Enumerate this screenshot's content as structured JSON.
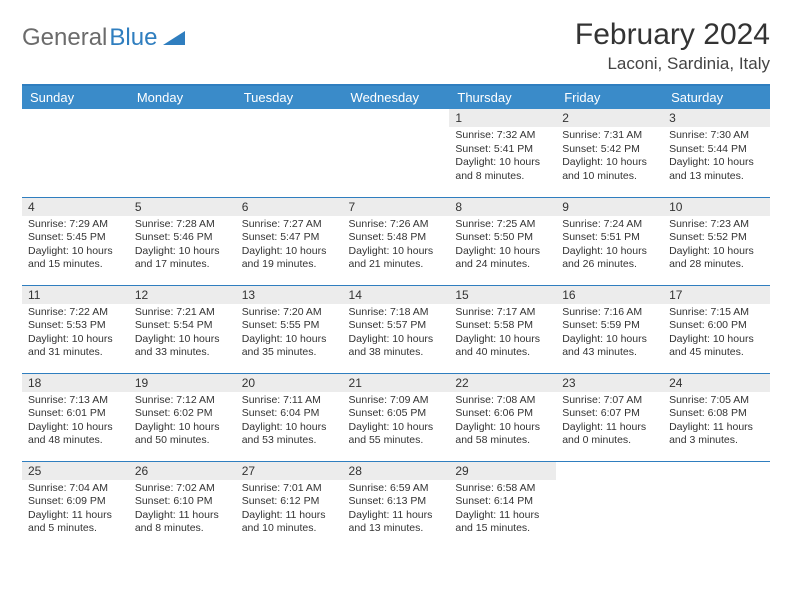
{
  "brand": {
    "part1": "General",
    "part2": "Blue"
  },
  "title": "February 2024",
  "location": "Laconi, Sardinia, Italy",
  "colors": {
    "header_bg": "#3a8bc9",
    "header_text": "#ffffff",
    "border": "#2f7ebf",
    "daynum_bg": "#ececec",
    "text": "#333333",
    "logo_gray": "#6b6b6b",
    "logo_blue": "#2f7ebf"
  },
  "weekdays": [
    "Sunday",
    "Monday",
    "Tuesday",
    "Wednesday",
    "Thursday",
    "Friday",
    "Saturday"
  ],
  "weeks": [
    [
      null,
      null,
      null,
      null,
      {
        "n": "1",
        "sr": "Sunrise: 7:32 AM",
        "ss": "Sunset: 5:41 PM",
        "d1": "Daylight: 10 hours",
        "d2": "and 8 minutes."
      },
      {
        "n": "2",
        "sr": "Sunrise: 7:31 AM",
        "ss": "Sunset: 5:42 PM",
        "d1": "Daylight: 10 hours",
        "d2": "and 10 minutes."
      },
      {
        "n": "3",
        "sr": "Sunrise: 7:30 AM",
        "ss": "Sunset: 5:44 PM",
        "d1": "Daylight: 10 hours",
        "d2": "and 13 minutes."
      }
    ],
    [
      {
        "n": "4",
        "sr": "Sunrise: 7:29 AM",
        "ss": "Sunset: 5:45 PM",
        "d1": "Daylight: 10 hours",
        "d2": "and 15 minutes."
      },
      {
        "n": "5",
        "sr": "Sunrise: 7:28 AM",
        "ss": "Sunset: 5:46 PM",
        "d1": "Daylight: 10 hours",
        "d2": "and 17 minutes."
      },
      {
        "n": "6",
        "sr": "Sunrise: 7:27 AM",
        "ss": "Sunset: 5:47 PM",
        "d1": "Daylight: 10 hours",
        "d2": "and 19 minutes."
      },
      {
        "n": "7",
        "sr": "Sunrise: 7:26 AM",
        "ss": "Sunset: 5:48 PM",
        "d1": "Daylight: 10 hours",
        "d2": "and 21 minutes."
      },
      {
        "n": "8",
        "sr": "Sunrise: 7:25 AM",
        "ss": "Sunset: 5:50 PM",
        "d1": "Daylight: 10 hours",
        "d2": "and 24 minutes."
      },
      {
        "n": "9",
        "sr": "Sunrise: 7:24 AM",
        "ss": "Sunset: 5:51 PM",
        "d1": "Daylight: 10 hours",
        "d2": "and 26 minutes."
      },
      {
        "n": "10",
        "sr": "Sunrise: 7:23 AM",
        "ss": "Sunset: 5:52 PM",
        "d1": "Daylight: 10 hours",
        "d2": "and 28 minutes."
      }
    ],
    [
      {
        "n": "11",
        "sr": "Sunrise: 7:22 AM",
        "ss": "Sunset: 5:53 PM",
        "d1": "Daylight: 10 hours",
        "d2": "and 31 minutes."
      },
      {
        "n": "12",
        "sr": "Sunrise: 7:21 AM",
        "ss": "Sunset: 5:54 PM",
        "d1": "Daylight: 10 hours",
        "d2": "and 33 minutes."
      },
      {
        "n": "13",
        "sr": "Sunrise: 7:20 AM",
        "ss": "Sunset: 5:55 PM",
        "d1": "Daylight: 10 hours",
        "d2": "and 35 minutes."
      },
      {
        "n": "14",
        "sr": "Sunrise: 7:18 AM",
        "ss": "Sunset: 5:57 PM",
        "d1": "Daylight: 10 hours",
        "d2": "and 38 minutes."
      },
      {
        "n": "15",
        "sr": "Sunrise: 7:17 AM",
        "ss": "Sunset: 5:58 PM",
        "d1": "Daylight: 10 hours",
        "d2": "and 40 minutes."
      },
      {
        "n": "16",
        "sr": "Sunrise: 7:16 AM",
        "ss": "Sunset: 5:59 PM",
        "d1": "Daylight: 10 hours",
        "d2": "and 43 minutes."
      },
      {
        "n": "17",
        "sr": "Sunrise: 7:15 AM",
        "ss": "Sunset: 6:00 PM",
        "d1": "Daylight: 10 hours",
        "d2": "and 45 minutes."
      }
    ],
    [
      {
        "n": "18",
        "sr": "Sunrise: 7:13 AM",
        "ss": "Sunset: 6:01 PM",
        "d1": "Daylight: 10 hours",
        "d2": "and 48 minutes."
      },
      {
        "n": "19",
        "sr": "Sunrise: 7:12 AM",
        "ss": "Sunset: 6:02 PM",
        "d1": "Daylight: 10 hours",
        "d2": "and 50 minutes."
      },
      {
        "n": "20",
        "sr": "Sunrise: 7:11 AM",
        "ss": "Sunset: 6:04 PM",
        "d1": "Daylight: 10 hours",
        "d2": "and 53 minutes."
      },
      {
        "n": "21",
        "sr": "Sunrise: 7:09 AM",
        "ss": "Sunset: 6:05 PM",
        "d1": "Daylight: 10 hours",
        "d2": "and 55 minutes."
      },
      {
        "n": "22",
        "sr": "Sunrise: 7:08 AM",
        "ss": "Sunset: 6:06 PM",
        "d1": "Daylight: 10 hours",
        "d2": "and 58 minutes."
      },
      {
        "n": "23",
        "sr": "Sunrise: 7:07 AM",
        "ss": "Sunset: 6:07 PM",
        "d1": "Daylight: 11 hours",
        "d2": "and 0 minutes."
      },
      {
        "n": "24",
        "sr": "Sunrise: 7:05 AM",
        "ss": "Sunset: 6:08 PM",
        "d1": "Daylight: 11 hours",
        "d2": "and 3 minutes."
      }
    ],
    [
      {
        "n": "25",
        "sr": "Sunrise: 7:04 AM",
        "ss": "Sunset: 6:09 PM",
        "d1": "Daylight: 11 hours",
        "d2": "and 5 minutes."
      },
      {
        "n": "26",
        "sr": "Sunrise: 7:02 AM",
        "ss": "Sunset: 6:10 PM",
        "d1": "Daylight: 11 hours",
        "d2": "and 8 minutes."
      },
      {
        "n": "27",
        "sr": "Sunrise: 7:01 AM",
        "ss": "Sunset: 6:12 PM",
        "d1": "Daylight: 11 hours",
        "d2": "and 10 minutes."
      },
      {
        "n": "28",
        "sr": "Sunrise: 6:59 AM",
        "ss": "Sunset: 6:13 PM",
        "d1": "Daylight: 11 hours",
        "d2": "and 13 minutes."
      },
      {
        "n": "29",
        "sr": "Sunrise: 6:58 AM",
        "ss": "Sunset: 6:14 PM",
        "d1": "Daylight: 11 hours",
        "d2": "and 15 minutes."
      },
      null,
      null
    ]
  ]
}
